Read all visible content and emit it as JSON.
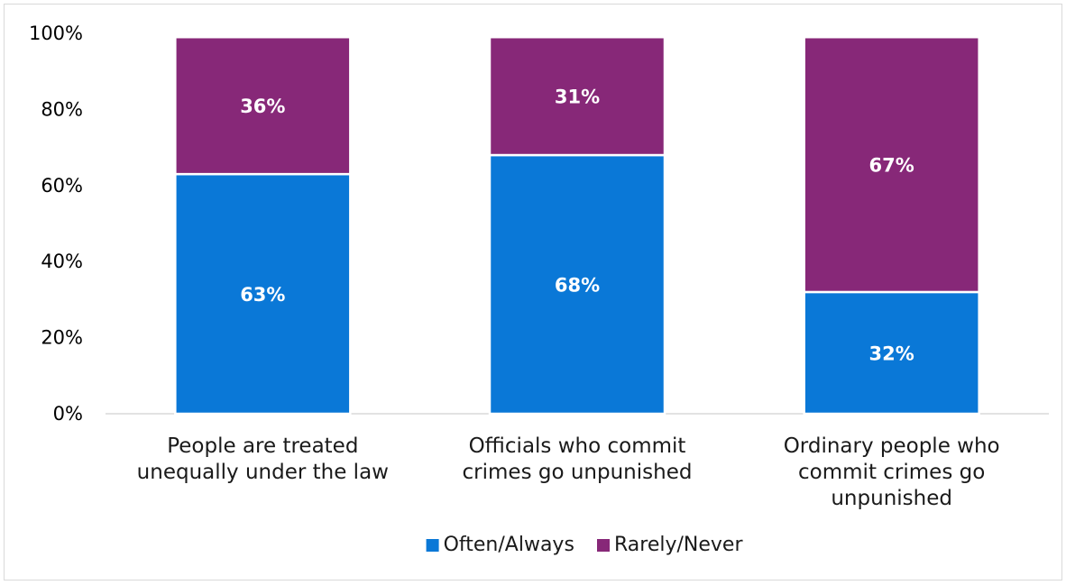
{
  "chart_data": {
    "type": "bar",
    "stacked": true,
    "percent": true,
    "title": "",
    "xlabel": "",
    "ylabel": "",
    "ylim": [
      0,
      100
    ],
    "yticks": [
      "0%",
      "20%",
      "40%",
      "60%",
      "80%",
      "100%"
    ],
    "categories": [
      [
        "People are treated",
        "unequally under the law"
      ],
      [
        "Officials who commit",
        "crimes go unpunished"
      ],
      [
        "Ordinary people who",
        "commit crimes go",
        "unpunished"
      ]
    ],
    "series": [
      {
        "name": "Often/Always",
        "color": "#0a78d7",
        "values": [
          63,
          68,
          32
        ],
        "labels": [
          "63%",
          "68%",
          "32%"
        ]
      },
      {
        "name": "Rarely/Never",
        "color": "#872878",
        "values": [
          36,
          31,
          67
        ],
        "labels": [
          "36%",
          "31%",
          "67%"
        ]
      }
    ],
    "grid": false,
    "legend_position": "bottom"
  }
}
